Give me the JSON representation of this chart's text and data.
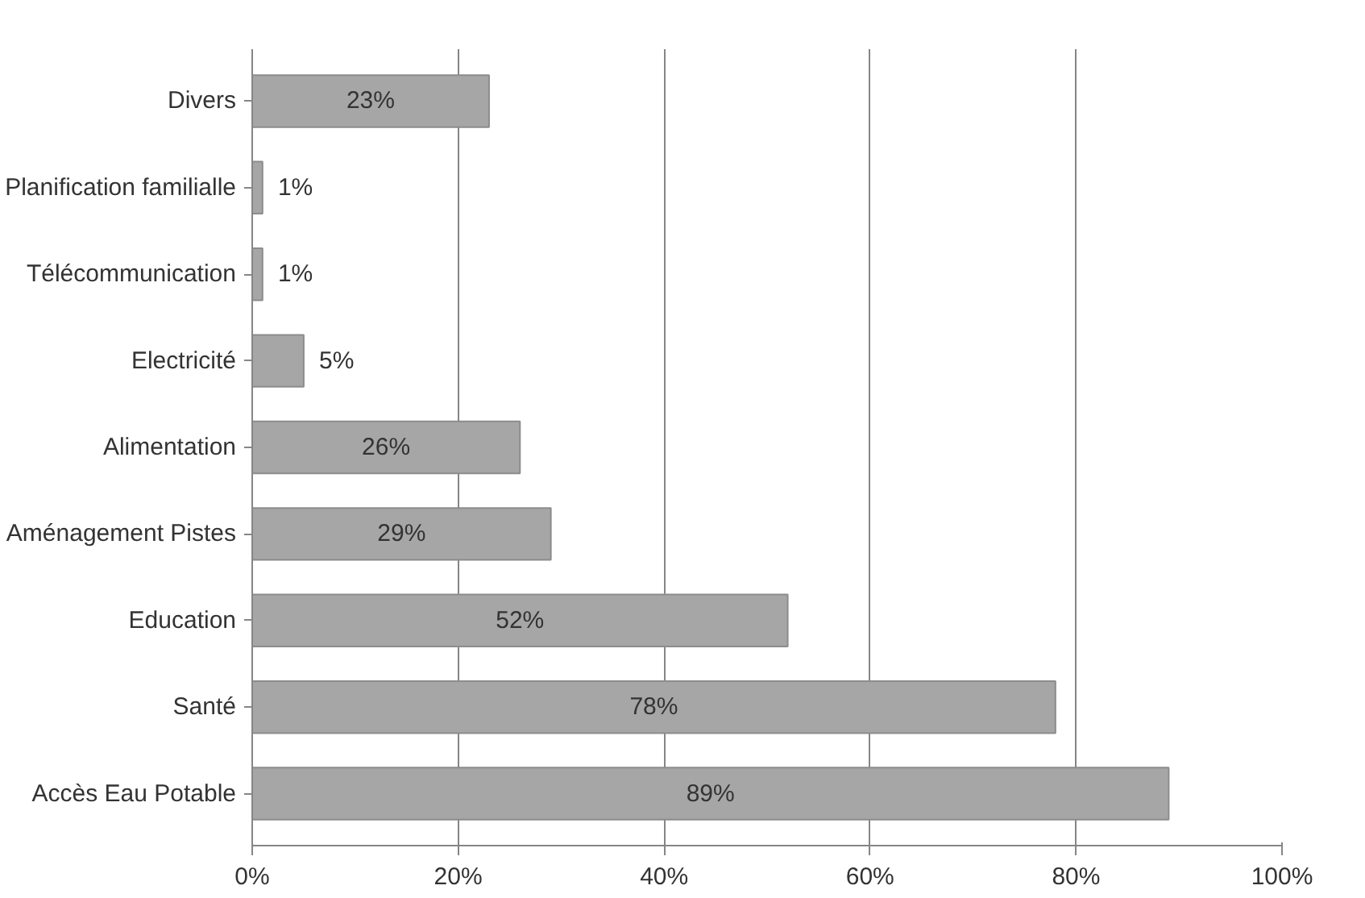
{
  "chart_data": {
    "type": "bar",
    "orientation": "horizontal",
    "categories": [
      "Divers",
      "Planification familialle",
      "Télécommunication",
      "Electricité",
      "Alimentation",
      "Aménagement Pistes",
      "Education",
      "Santé",
      "Accès Eau Potable"
    ],
    "values": [
      23,
      1,
      1,
      5,
      26,
      29,
      52,
      78,
      89
    ],
    "value_labels": [
      "23%",
      "1%",
      "1%",
      "5%",
      "26%",
      "29%",
      "52%",
      "78%",
      "89%"
    ],
    "color": "#a6a6a6",
    "xlim": [
      0,
      100
    ],
    "xticks": [
      {
        "value": 0,
        "label": "0%"
      },
      {
        "value": 20,
        "label": "20%"
      },
      {
        "value": 40,
        "label": "40%"
      },
      {
        "value": 60,
        "label": "60%"
      },
      {
        "value": 80,
        "label": "80%"
      },
      {
        "value": 100,
        "label": "100%"
      }
    ],
    "grid": "x"
  }
}
